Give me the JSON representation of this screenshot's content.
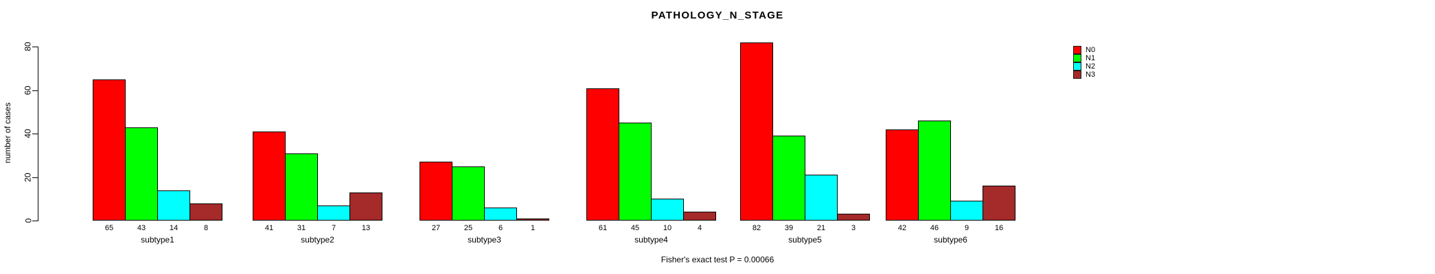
{
  "chart_data": {
    "type": "bar",
    "title": "PATHOLOGY_N_STAGE",
    "ylabel": "number of cases",
    "xlabel": "",
    "categories": [
      "subtype1",
      "subtype2",
      "subtype3",
      "subtype4",
      "subtype5",
      "subtype6"
    ],
    "series": [
      {
        "name": "N0",
        "color": "#FF0000",
        "values": [
          65,
          41,
          27,
          61,
          82,
          42
        ]
      },
      {
        "name": "N1",
        "color": "#00FF00",
        "values": [
          43,
          31,
          25,
          45,
          39,
          46
        ]
      },
      {
        "name": "N2",
        "color": "#00FFFF",
        "values": [
          14,
          7,
          6,
          10,
          21,
          9
        ]
      },
      {
        "name": "N3",
        "color": "#A52A2A",
        "values": [
          8,
          13,
          1,
          4,
          3,
          16
        ]
      }
    ],
    "yticks": [
      0,
      20,
      40,
      60,
      80
    ],
    "ylim": [
      0,
      80
    ],
    "grid": false,
    "bar_value_labels_shown": true,
    "legend_position": "top-right",
    "footnote": "Fisher's exact test P = 0.00066",
    "background_color": "#FFFFFF",
    "axis_color": "#000000"
  }
}
